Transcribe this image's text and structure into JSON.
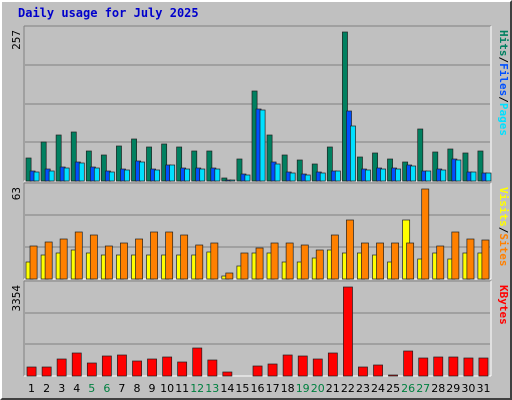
{
  "chart_data": {
    "type": "bar",
    "title": "Daily usage for July 2025",
    "categories": [
      "1",
      "2",
      "3",
      "4",
      "5",
      "6",
      "7",
      "8",
      "9",
      "10",
      "11",
      "12",
      "13",
      "14",
      "15",
      "16",
      "17",
      "18",
      "19",
      "20",
      "21",
      "22",
      "23",
      "24",
      "25",
      "26",
      "27",
      "28",
      "29",
      "30",
      "31"
    ],
    "weekend_days": [
      "5",
      "6",
      "12",
      "13",
      "19",
      "20",
      "26",
      "27"
    ],
    "colors": {
      "hits": "#008060",
      "files": "#00a0ff",
      "pages": "#00e0ff",
      "visits": "#ffff00",
      "sites": "#ff8000",
      "kbytes": "#ff0000",
      "weekday_label": "#000000",
      "weekend_label": "#008040",
      "title": "#0000cc",
      "background": "#c0c0c0",
      "gridline": "#808080"
    },
    "panels": [
      {
        "id": "hits",
        "ymax_label": "257",
        "ymax": 257,
        "legend": [
          {
            "text": "Hits",
            "color": "#008060"
          },
          {
            "text": "/",
            "color": "#000000"
          },
          {
            "text": "Files",
            "color": "#0050ff"
          },
          {
            "text": "/",
            "color": "#000000"
          },
          {
            "text": "Pages",
            "color": "#00e0ff"
          }
        ],
        "series": [
          {
            "name": "Hits",
            "color": "#008060",
            "values": [
              40,
              67,
              80,
              85,
              52,
              45,
              60,
              72,
              58,
              64,
              58,
              52,
              52,
              5,
              38,
              155,
              80,
              45,
              36,
              30,
              58,
              257,
              42,
              48,
              38,
              33,
              90,
              50,
              55,
              48,
              52
            ]
          },
          {
            "name": "Files",
            "color": "#0050ff",
            "values": [
              18,
              20,
              25,
              33,
              24,
              18,
              20,
              34,
              20,
              28,
              22,
              22,
              22,
              2,
              12,
              125,
              32,
              16,
              12,
              15,
              18,
              120,
              20,
              22,
              22,
              28,
              18,
              20,
              38,
              16,
              14
            ]
          },
          {
            "name": "Pages",
            "color": "#00e0ff",
            "values": [
              16,
              18,
              23,
              31,
              22,
              16,
              19,
              32,
              19,
              27,
              21,
              21,
              20,
              1,
              11,
              123,
              30,
              14,
              11,
              13,
              17,
              95,
              19,
              20,
              21,
              26,
              17,
              19,
              36,
              15,
              13
            ]
          }
        ]
      },
      {
        "id": "visits",
        "ymax_label": "63",
        "ymax": 63,
        "legend": [
          {
            "text": "Visits",
            "color": "#ffff00"
          },
          {
            "text": "/",
            "color": "#000000"
          },
          {
            "text": "Sites",
            "color": "#ff8000"
          }
        ],
        "series": [
          {
            "name": "Visits",
            "color": "#ffff00",
            "values": [
              12,
              17,
              18,
              20,
              18,
              17,
              17,
              17,
              17,
              17,
              17,
              17,
              19,
              2,
              9,
              18,
              18,
              12,
              12,
              15,
              20,
              18,
              18,
              17,
              12,
              41,
              14,
              18,
              14,
              18,
              18
            ]
          },
          {
            "name": "Sites",
            "color": "#ff8000",
            "values": [
              23,
              26,
              28,
              33,
              31,
              23,
              25,
              28,
              33,
              33,
              31,
              24,
              25,
              4,
              18,
              22,
              25,
              25,
              24,
              20,
              31,
              41,
              25,
              25,
              25,
              25,
              63,
              23,
              33,
              28,
              27
            ]
          }
        ]
      },
      {
        "id": "kbytes",
        "ymax_label": "3354",
        "ymax": 3354,
        "legend": [
          {
            "text": "KBytes",
            "color": "#ff0000"
          }
        ],
        "series": [
          {
            "name": "KBytes",
            "color": "#ff0000",
            "values": [
              330,
              340,
              640,
              870,
              490,
              740,
              800,
              550,
              650,
              700,
              540,
              1040,
              620,
              140,
              0,
              370,
              470,
              800,
              740,
              630,
              860,
              3354,
              330,
              420,
              40,
              960,
              660,
              700,
              700,
              690,
              690
            ]
          }
        ]
      }
    ]
  }
}
